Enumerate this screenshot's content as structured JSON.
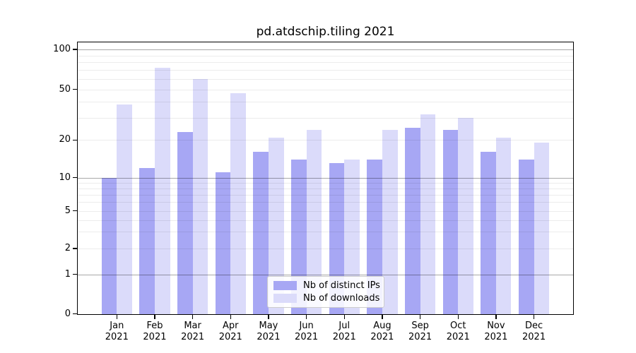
{
  "chart_data": {
    "type": "bar",
    "title": "pd.atdschip.tiling 2021",
    "categories": [
      "Jan",
      "Feb",
      "Mar",
      "Apr",
      "May",
      "Jun",
      "Jul",
      "Aug",
      "Sep",
      "Oct",
      "Nov",
      "Dec"
    ],
    "category_sublabel": "2021",
    "series": [
      {
        "name": "Nb of distinct IPs",
        "color": "#a7a7f4",
        "values": [
          10,
          12,
          23,
          11,
          16,
          14,
          13,
          14,
          25,
          24,
          16,
          14
        ]
      },
      {
        "name": "Nb of downloads",
        "color": "#dbdbfa",
        "values": [
          38,
          73,
          60,
          47,
          21,
          24,
          14,
          24,
          32,
          30,
          21,
          19
        ]
      }
    ],
    "yscale": "symlog",
    "yticks": [
      0,
      1,
      2,
      5,
      10,
      20,
      50,
      100
    ],
    "ylim": [
      0,
      107
    ],
    "xlabel": "",
    "ylabel": "",
    "grid": "both",
    "legend_position": "lower-center"
  },
  "colors": {
    "background": "#ffffff",
    "spine": "#000000",
    "grid_minor": "rgba(0,0,0,0.075)",
    "grid_major": "rgba(0,0,0,0.34)",
    "legend_border": "#cccccc"
  }
}
